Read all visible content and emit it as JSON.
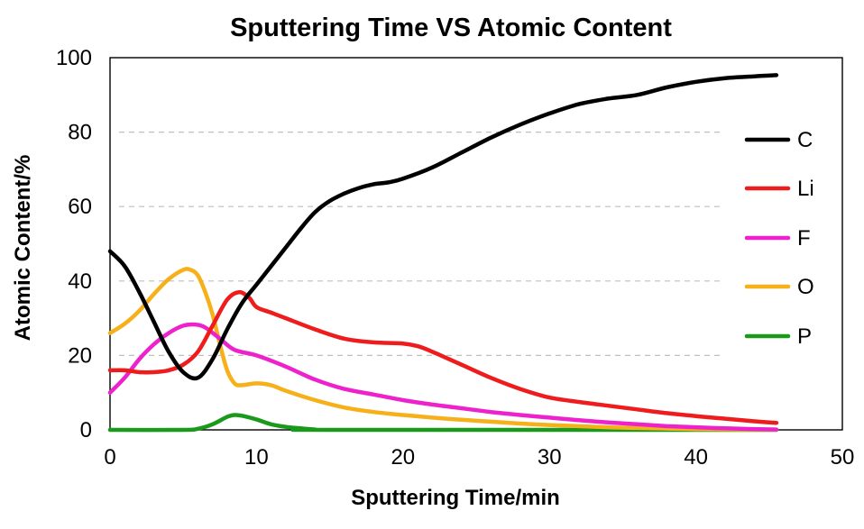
{
  "chart_data": {
    "type": "line",
    "title": "Sputtering Time VS Atomic Content",
    "xlabel": "Sputtering Time/min",
    "ylabel": "Atomic Content/%",
    "xlim": [
      0,
      50
    ],
    "ylim": [
      0,
      100
    ],
    "xticks": [
      "0",
      "10",
      "20",
      "30",
      "40",
      "50"
    ],
    "yticks": [
      "0",
      "20",
      "40",
      "60",
      "80",
      "100"
    ],
    "grid": "horizontal dashed",
    "legend": "right",
    "series": [
      {
        "name": "C",
        "color": "#000000",
        "points": [
          [
            0,
            48
          ],
          [
            1,
            44
          ],
          [
            2,
            37
          ],
          [
            3,
            29
          ],
          [
            4,
            21
          ],
          [
            5,
            15.5
          ],
          [
            6,
            14
          ],
          [
            7,
            19
          ],
          [
            8,
            27
          ],
          [
            9,
            34
          ],
          [
            10,
            39
          ],
          [
            11,
            44
          ],
          [
            12,
            49
          ],
          [
            13,
            54
          ],
          [
            14,
            58.5
          ],
          [
            15,
            61.5
          ],
          [
            16,
            63.5
          ],
          [
            17,
            65
          ],
          [
            18,
            66
          ],
          [
            19,
            66.5
          ],
          [
            20,
            67.5
          ],
          [
            22,
            70.5
          ],
          [
            24,
            74.5
          ],
          [
            26,
            78.5
          ],
          [
            28,
            82
          ],
          [
            30,
            85
          ],
          [
            32,
            87.5
          ],
          [
            34,
            89
          ],
          [
            36,
            90
          ],
          [
            38,
            92
          ],
          [
            40,
            93.5
          ],
          [
            42,
            94.5
          ],
          [
            44,
            95
          ],
          [
            45.5,
            95.3
          ]
        ]
      },
      {
        "name": "Li",
        "color": "#ee1c1c",
        "points": [
          [
            0,
            16
          ],
          [
            1,
            16
          ],
          [
            2,
            15.5
          ],
          [
            3,
            15.5
          ],
          [
            4,
            16
          ],
          [
            5,
            17.5
          ],
          [
            6,
            21
          ],
          [
            7,
            28
          ],
          [
            8,
            35
          ],
          [
            8.8,
            37
          ],
          [
            9.5,
            35.5
          ],
          [
            10,
            33
          ],
          [
            11,
            31.5
          ],
          [
            12,
            30
          ],
          [
            14,
            27
          ],
          [
            16,
            24.5
          ],
          [
            18,
            23.5
          ],
          [
            20,
            23.2
          ],
          [
            21,
            22.5
          ],
          [
            22,
            21
          ],
          [
            24,
            17.5
          ],
          [
            26,
            14
          ],
          [
            28,
            11
          ],
          [
            30,
            8.7
          ],
          [
            32,
            7.5
          ],
          [
            34,
            6.5
          ],
          [
            36,
            5.5
          ],
          [
            38,
            4.5
          ],
          [
            40,
            3.7
          ],
          [
            42,
            3
          ],
          [
            44,
            2.3
          ],
          [
            45.5,
            1.9
          ]
        ]
      },
      {
        "name": "F",
        "color": "#ee22cc",
        "points": [
          [
            0,
            10
          ],
          [
            1,
            14
          ],
          [
            2,
            19
          ],
          [
            3,
            23
          ],
          [
            4,
            26
          ],
          [
            5,
            28
          ],
          [
            5.8,
            28.3
          ],
          [
            6.5,
            27.5
          ],
          [
            7.5,
            24.5
          ],
          [
            8.5,
            21.5
          ],
          [
            10,
            20
          ],
          [
            12,
            17
          ],
          [
            14,
            13.5
          ],
          [
            16,
            11
          ],
          [
            18,
            9.5
          ],
          [
            20,
            8
          ],
          [
            22,
            6.8
          ],
          [
            24,
            5.8
          ],
          [
            26,
            4.8
          ],
          [
            28,
            4
          ],
          [
            30,
            3.3
          ],
          [
            32,
            2.6
          ],
          [
            34,
            2
          ],
          [
            36,
            1.5
          ],
          [
            38,
            1
          ],
          [
            40,
            0.7
          ],
          [
            42,
            0.4
          ],
          [
            45.5,
            0.1
          ]
        ]
      },
      {
        "name": "O",
        "color": "#f5b01a",
        "points": [
          [
            0,
            26
          ],
          [
            1,
            28.5
          ],
          [
            2,
            32
          ],
          [
            3,
            36.5
          ],
          [
            4,
            40.5
          ],
          [
            5,
            43
          ],
          [
            5.5,
            43
          ],
          [
            6,
            41.5
          ],
          [
            6.5,
            37
          ],
          [
            7,
            31
          ],
          [
            7.5,
            23
          ],
          [
            8,
            16
          ],
          [
            8.5,
            12.5
          ],
          [
            9,
            12
          ],
          [
            10,
            12.5
          ],
          [
            11,
            12
          ],
          [
            12,
            10.5
          ],
          [
            14,
            8
          ],
          [
            16,
            6
          ],
          [
            18,
            4.8
          ],
          [
            20,
            4
          ],
          [
            22,
            3.3
          ],
          [
            24,
            2.7
          ],
          [
            26,
            2.2
          ],
          [
            28,
            1.7
          ],
          [
            30,
            1.3
          ],
          [
            32,
            1
          ],
          [
            34,
            0.7
          ],
          [
            36,
            0.5
          ],
          [
            38,
            0.35
          ],
          [
            40,
            0.2
          ],
          [
            42,
            0.12
          ],
          [
            45.5,
            0.05
          ]
        ]
      },
      {
        "name": "P",
        "color": "#1a9a1a",
        "points": [
          [
            0,
            0
          ],
          [
            5,
            0
          ],
          [
            6,
            0.3
          ],
          [
            7,
            1.5
          ],
          [
            8,
            3.5
          ],
          [
            8.5,
            4
          ],
          [
            9,
            3.8
          ],
          [
            10,
            2.8
          ],
          [
            11,
            1.5
          ],
          [
            12,
            0.8
          ],
          [
            13,
            0.4
          ],
          [
            14,
            0.1
          ],
          [
            15,
            0
          ],
          [
            45.5,
            0
          ]
        ]
      }
    ]
  }
}
